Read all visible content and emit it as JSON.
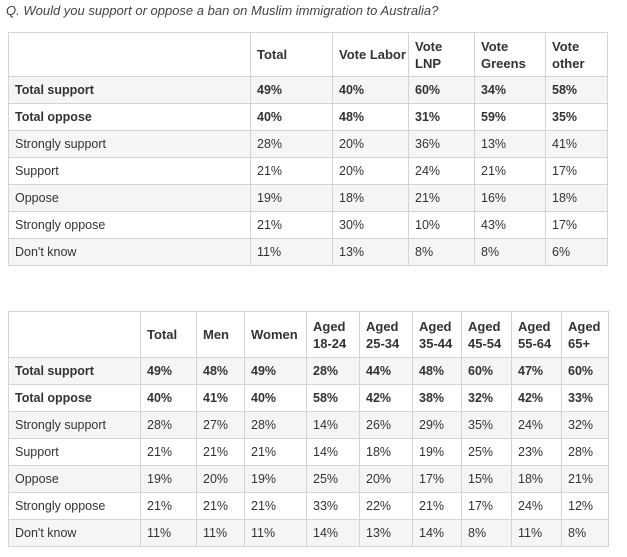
{
  "question": "Q. Would you support or oppose a ban on Muslim immigration to Australia?",
  "table1": {
    "headers": [
      {
        "line1": "Total",
        "line2": ""
      },
      {
        "line1": "Vote Labor",
        "line2": ""
      },
      {
        "line1": "Vote",
        "line2": "LNP"
      },
      {
        "line1": "Vote",
        "line2": "Greens"
      },
      {
        "line1": "Vote",
        "line2": "other"
      }
    ],
    "rows": [
      {
        "label": "Total support",
        "values": [
          "49%",
          "40%",
          "60%",
          "34%",
          "58%"
        ]
      },
      {
        "label": "Total oppose",
        "values": [
          "40%",
          "48%",
          "31%",
          "59%",
          "35%"
        ]
      },
      {
        "label": "Strongly support",
        "values": [
          "28%",
          "20%",
          "36%",
          "13%",
          "41%"
        ]
      },
      {
        "label": "Support",
        "values": [
          "21%",
          "20%",
          "24%",
          "21%",
          "17%"
        ]
      },
      {
        "label": "Oppose",
        "values": [
          "19%",
          "18%",
          "21%",
          "16%",
          "18%"
        ]
      },
      {
        "label": "Strongly oppose",
        "values": [
          "21%",
          "30%",
          "10%",
          "43%",
          "17%"
        ]
      },
      {
        "label": "Don't know",
        "values": [
          "11%",
          "13%",
          "8%",
          "8%",
          "6%"
        ]
      }
    ]
  },
  "table2": {
    "headers": [
      {
        "line1": "Total",
        "line2": ""
      },
      {
        "line1": "Men",
        "line2": ""
      },
      {
        "line1": "Women",
        "line2": ""
      },
      {
        "line1": "Aged",
        "line2": "18-24"
      },
      {
        "line1": "Aged",
        "line2": "25-34"
      },
      {
        "line1": "Aged",
        "line2": "35-44"
      },
      {
        "line1": "Aged",
        "line2": "45-54"
      },
      {
        "line1": "Aged",
        "line2": "55-64"
      },
      {
        "line1": "Aged",
        "line2": "65+"
      }
    ],
    "rows": [
      {
        "label": "Total support",
        "values": [
          "49%",
          "48%",
          "49%",
          "28%",
          "44%",
          "48%",
          "60%",
          "47%",
          "60%"
        ]
      },
      {
        "label": "Total oppose",
        "values": [
          "40%",
          "41%",
          "40%",
          "58%",
          "42%",
          "38%",
          "32%",
          "42%",
          "33%"
        ]
      },
      {
        "label": "Strongly support",
        "values": [
          "28%",
          "27%",
          "28%",
          "14%",
          "26%",
          "29%",
          "35%",
          "24%",
          "32%"
        ]
      },
      {
        "label": "Support",
        "values": [
          "21%",
          "21%",
          "21%",
          "14%",
          "18%",
          "19%",
          "25%",
          "23%",
          "28%"
        ]
      },
      {
        "label": "Oppose",
        "values": [
          "19%",
          "20%",
          "19%",
          "25%",
          "20%",
          "17%",
          "15%",
          "18%",
          "21%"
        ]
      },
      {
        "label": "Strongly oppose",
        "values": [
          "21%",
          "21%",
          "21%",
          "33%",
          "22%",
          "21%",
          "17%",
          "24%",
          "12%"
        ]
      },
      {
        "label": "Don't know",
        "values": [
          "11%",
          "11%",
          "11%",
          "14%",
          "13%",
          "14%",
          "8%",
          "11%",
          "8%"
        ]
      }
    ]
  }
}
